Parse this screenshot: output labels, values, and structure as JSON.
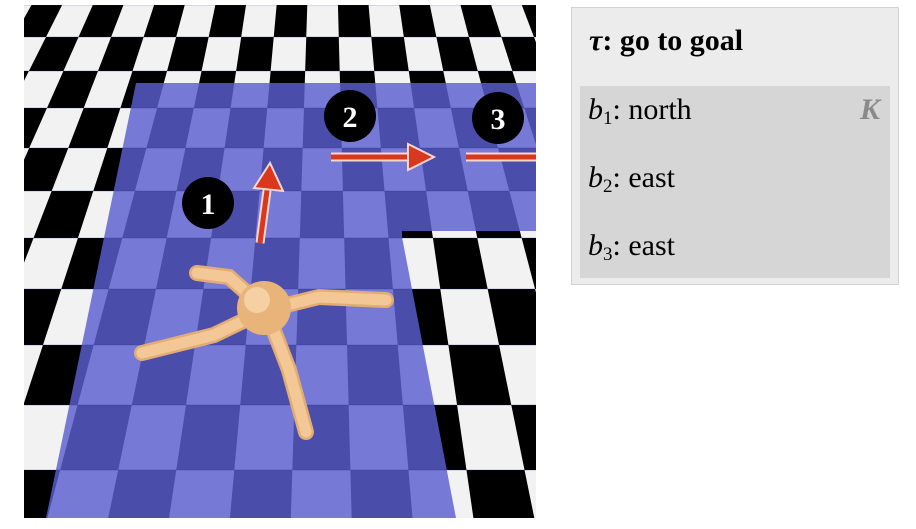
{
  "scene": {
    "floor_colors": {
      "dark_tile": "#000000",
      "light_tile": "#f2f2f2",
      "overlay": "#5a5fd0",
      "agent": "#f0c48c",
      "arrow": "#d9381e",
      "step_badge": "#000000"
    },
    "steps": [
      {
        "label": "1"
      },
      {
        "label": "2"
      },
      {
        "label": "3"
      }
    ]
  },
  "panel": {
    "task_symbol": "τ",
    "task_text": ": go to goal",
    "k_badge": "K",
    "behaviors": [
      {
        "symbol": "b",
        "index": "1",
        "text": ": north"
      },
      {
        "symbol": "b",
        "index": "2",
        "text": ": east"
      },
      {
        "symbol": "b",
        "index": "3",
        "text": ": east"
      }
    ]
  }
}
